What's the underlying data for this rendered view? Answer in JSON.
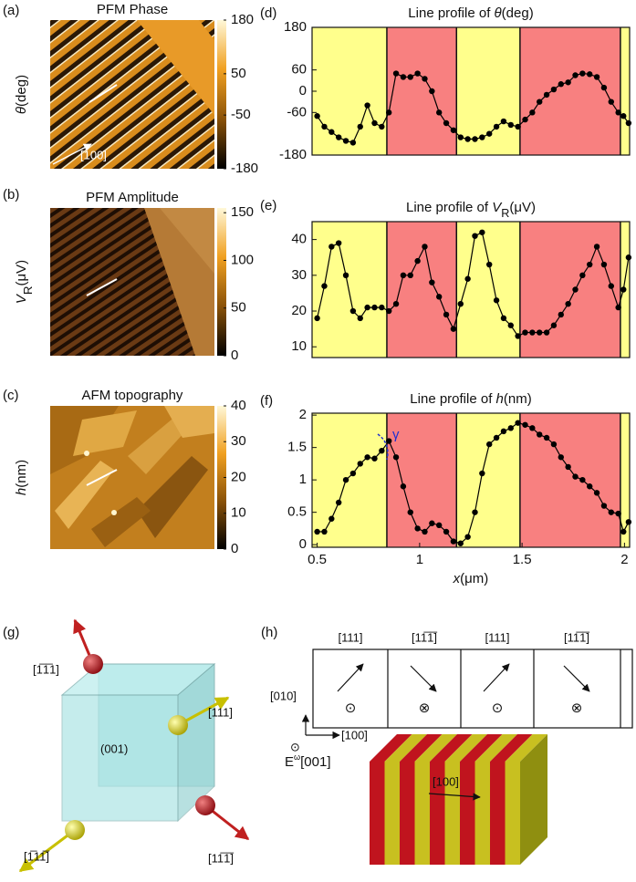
{
  "panel_labels": [
    "(a)",
    "(b)",
    "(c)",
    "(d)",
    "(e)",
    "(f)",
    "(g)",
    "(h)"
  ],
  "images": [
    {
      "title": "PFM Phase",
      "ylabel": [
        {
          "text": "θ",
          "style": "italic"
        },
        {
          "text": "(deg)",
          "style": "normal"
        }
      ],
      "colorbar": {
        "clim": [
          -180,
          180
        ],
        "ticks": [
          180,
          50,
          -50,
          -180
        ],
        "colors": [
          "#000000",
          "#8a5208",
          "#f0a020",
          "#fff8d8"
        ]
      },
      "annotation": "[100]"
    },
    {
      "title": "PFM Amplitude",
      "ylabel": [
        {
          "text": "V",
          "style": "italic"
        },
        {
          "text": "R",
          "style": "sub"
        },
        {
          "text": "(μV)",
          "style": "normal"
        }
      ],
      "colorbar": {
        "clim": [
          0,
          155
        ],
        "ticks": [
          150,
          100,
          50,
          0
        ],
        "colors": [
          "#000000",
          "#8a5208",
          "#f0a020",
          "#fff8d8"
        ]
      }
    },
    {
      "title": "AFM topography",
      "ylabel": [
        {
          "text": "h",
          "style": "italic"
        },
        {
          "text": "(nm)",
          "style": "normal"
        }
      ],
      "colorbar": {
        "clim": [
          0,
          40
        ],
        "ticks": [
          40,
          30,
          20,
          10,
          0
        ],
        "colors": [
          "#000000",
          "#8a5208",
          "#f0a020",
          "#fff8d8"
        ]
      }
    }
  ],
  "chart_data": [
    {
      "type": "line",
      "title": [
        {
          "text": "Line profile of ",
          "style": "normal"
        },
        {
          "text": "θ",
          "style": "italic"
        },
        {
          "text": "(deg)",
          "style": "normal"
        }
      ],
      "x": [
        0.5,
        0.535,
        0.57,
        0.605,
        0.64,
        0.675,
        0.71,
        0.745,
        0.78,
        0.815,
        0.85,
        0.885,
        0.92,
        0.955,
        0.99,
        1.025,
        1.06,
        1.095,
        1.13,
        1.165,
        1.2,
        1.235,
        1.27,
        1.305,
        1.34,
        1.375,
        1.41,
        1.445,
        1.48,
        1.515,
        1.55,
        1.585,
        1.62,
        1.655,
        1.69,
        1.725,
        1.76,
        1.795,
        1.83,
        1.865,
        1.9,
        1.935,
        1.97,
        1.995,
        2.02
      ],
      "values": [
        -70,
        -100,
        -115,
        -130,
        -140,
        -145,
        -100,
        -40,
        -90,
        -100,
        -60,
        50,
        40,
        40,
        50,
        35,
        0,
        -60,
        -90,
        -110,
        -130,
        -135,
        -135,
        -130,
        -120,
        -100,
        -85,
        -95,
        -100,
        -80,
        -60,
        -30,
        -10,
        5,
        20,
        25,
        45,
        50,
        48,
        40,
        10,
        -30,
        -60,
        -70,
        -90
      ],
      "color": "#000000",
      "xlim": [
        0.475,
        2.025
      ],
      "ylim": [
        -180,
        180
      ],
      "yticks": [
        180,
        60,
        0,
        -60,
        -180
      ],
      "domains": [
        {
          "from": 0.475,
          "to": 0.84,
          "color": "#ffff8c"
        },
        {
          "from": 0.84,
          "to": 1.18,
          "color": "#f88080"
        },
        {
          "from": 1.18,
          "to": 1.49,
          "color": "#ffff8c"
        },
        {
          "from": 1.49,
          "to": 1.98,
          "color": "#f88080"
        },
        {
          "from": 1.98,
          "to": 2.025,
          "color": "#ffff8c"
        }
      ]
    },
    {
      "type": "line",
      "title": [
        {
          "text": "Line profile of ",
          "style": "normal"
        },
        {
          "text": "V",
          "style": "italic"
        },
        {
          "text": "R",
          "style": "sub"
        },
        {
          "text": "(μV)",
          "style": "normal"
        }
      ],
      "x": [
        0.5,
        0.535,
        0.57,
        0.605,
        0.64,
        0.675,
        0.71,
        0.745,
        0.78,
        0.815,
        0.85,
        0.885,
        0.92,
        0.955,
        0.99,
        1.025,
        1.06,
        1.095,
        1.13,
        1.165,
        1.2,
        1.235,
        1.27,
        1.305,
        1.34,
        1.375,
        1.41,
        1.445,
        1.48,
        1.515,
        1.55,
        1.585,
        1.62,
        1.655,
        1.69,
        1.725,
        1.76,
        1.795,
        1.83,
        1.865,
        1.9,
        1.935,
        1.97,
        1.995,
        2.02
      ],
      "values": [
        18,
        27,
        38,
        39,
        30,
        20,
        18,
        21,
        21,
        21,
        20,
        22,
        30,
        30,
        34,
        38,
        28,
        24,
        19,
        15,
        22,
        29,
        41,
        42,
        33,
        23,
        18,
        16,
        13,
        14,
        14,
        14,
        14,
        16,
        19,
        22,
        26,
        30,
        33,
        38,
        33,
        27,
        21,
        26,
        35
      ],
      "color": "#000000",
      "xlim": [
        0.475,
        2.025
      ],
      "ylim": [
        7,
        45
      ],
      "yticks": [
        40,
        30,
        20,
        10
      ],
      "domains": [
        {
          "from": 0.475,
          "to": 0.84,
          "color": "#ffff8c"
        },
        {
          "from": 0.84,
          "to": 1.18,
          "color": "#f88080"
        },
        {
          "from": 1.18,
          "to": 1.49,
          "color": "#ffff8c"
        },
        {
          "from": 1.49,
          "to": 1.98,
          "color": "#f88080"
        },
        {
          "from": 1.98,
          "to": 2.025,
          "color": "#ffff8c"
        }
      ]
    },
    {
      "type": "line",
      "title": [
        {
          "text": "Line profile of ",
          "style": "normal"
        },
        {
          "text": "h",
          "style": "italic"
        },
        {
          "text": "(nm)",
          "style": "normal"
        }
      ],
      "x": [
        0.5,
        0.535,
        0.57,
        0.605,
        0.64,
        0.675,
        0.71,
        0.745,
        0.78,
        0.815,
        0.85,
        0.885,
        0.92,
        0.955,
        0.99,
        1.025,
        1.06,
        1.095,
        1.13,
        1.165,
        1.2,
        1.235,
        1.27,
        1.305,
        1.34,
        1.375,
        1.41,
        1.445,
        1.48,
        1.515,
        1.55,
        1.585,
        1.62,
        1.655,
        1.69,
        1.725,
        1.76,
        1.795,
        1.83,
        1.865,
        1.9,
        1.935,
        1.97,
        1.995,
        2.02
      ],
      "values": [
        0.2,
        0.2,
        0.4,
        0.65,
        1,
        1.1,
        1.25,
        1.35,
        1.33,
        1.45,
        1.6,
        1.35,
        0.9,
        0.5,
        0.25,
        0.2,
        0.33,
        0.3,
        0.2,
        0.05,
        0.02,
        0.12,
        0.5,
        1.1,
        1.55,
        1.65,
        1.75,
        1.8,
        1.88,
        1.85,
        1.8,
        1.7,
        1.65,
        1.55,
        1.35,
        1.2,
        1.05,
        1,
        0.9,
        0.8,
        0.6,
        0.5,
        0.48,
        0.2,
        0.35
      ],
      "color": "#000000",
      "xlim": [
        0.475,
        2.025
      ],
      "ylim": [
        -0.04,
        2.03
      ],
      "yticks": [
        2,
        1.5,
        1,
        0.5,
        0
      ],
      "xticks": [
        0.5,
        1,
        1.5,
        2
      ],
      "xlabel": [
        {
          "text": "x",
          "style": "italic"
        },
        {
          "text": "(μm)",
          "style": "normal"
        }
      ],
      "annotation": "γ",
      "domains": [
        {
          "from": 0.475,
          "to": 0.84,
          "color": "#ffff8c"
        },
        {
          "from": 0.84,
          "to": 1.18,
          "color": "#f88080"
        },
        {
          "from": 1.18,
          "to": 1.49,
          "color": "#ffff8c"
        },
        {
          "from": 1.49,
          "to": 1.98,
          "color": "#f88080"
        },
        {
          "from": 1.98,
          "to": 2.025,
          "color": "#ffff8c"
        }
      ]
    }
  ],
  "cube": {
    "face_label": "(001)",
    "axis_labels": [
      "[1̅1̅1]",
      "[111]",
      "[11̅1̅]",
      "[1̅11̅]"
    ]
  },
  "domain_diagram": {
    "polarization_labels": [
      "[111]",
      "[11̅1̅]",
      "[111]",
      "[11̅1̅]"
    ],
    "out_of_plane": [
      "⊙",
      "⊗",
      "⊙",
      "⊗"
    ],
    "axes": {
      "y": "[010]",
      "x": "[100]",
      "z_symbol": "⊙",
      "field": [
        {
          "text": "E",
          "style": "normal"
        },
        {
          "text": "ω",
          "style": "sup"
        },
        {
          "text": "[001]",
          "style": "normal"
        }
      ]
    },
    "block_label": "[100]"
  }
}
